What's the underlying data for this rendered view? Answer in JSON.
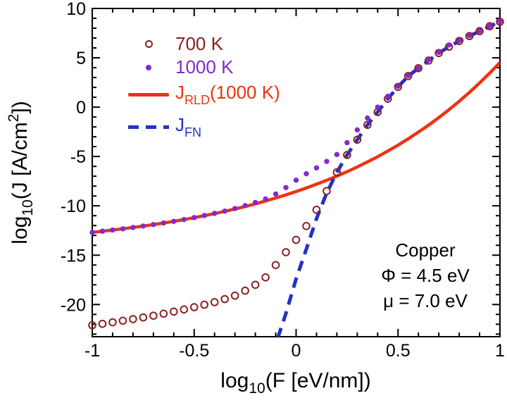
{
  "figure": {
    "background": "#ffffff",
    "text_color": "#000000"
  },
  "axes": {
    "x": {
      "title_parts": {
        "pre": "log",
        "sub": "10",
        "rest": "(F [eV/nm])"
      },
      "range": [
        -1,
        1
      ],
      "major_ticks": [
        -1,
        -0.5,
        0,
        0.5,
        1
      ],
      "tick_labels": [
        "-1",
        "-0.5",
        "0",
        "0.5",
        "1"
      ],
      "minor_step": 0.1
    },
    "y": {
      "title_parts": {
        "pre": "log",
        "sub": "10",
        "rest": "(J [A/cm",
        "sup": "2",
        "end": "])"
      },
      "range": [
        -23.26,
        10
      ],
      "major_ticks": [
        10,
        5,
        0,
        -5,
        -10,
        -15,
        -20
      ],
      "tick_labels": [
        "10",
        "5",
        "0",
        "-5",
        "-10",
        "-15",
        "-20"
      ],
      "minor_step": 1
    }
  },
  "legend": {
    "items": [
      {
        "label": "700 K",
        "marker": "open-circle",
        "color": "#8b2121"
      },
      {
        "label": "1000 K",
        "marker": "filled-dot",
        "color": "#8229d2"
      },
      {
        "parts": {
          "main": "J",
          "sub": "RLD",
          "rest": "(1000 K)"
        },
        "marker": "solid-line",
        "color": "#ee3211"
      },
      {
        "parts": {
          "main": "J",
          "sub": "FN",
          "rest": ""
        },
        "marker": "dashed-line",
        "color": "#2231c7"
      }
    ]
  },
  "annotation": {
    "lines": [
      "Copper",
      "Φ = 4.5 eV",
      "μ = 7.0 eV"
    ]
  },
  "colors": {
    "series_700K": "#8b2121",
    "series_1000K": "#8229d2",
    "rld_line": "#ee3211",
    "fn_line": "#2231c7",
    "axis": "#000000"
  },
  "chart_data": {
    "type": "scatter",
    "xlabel": "log10(F [eV/nm])",
    "ylabel": "log10(J [A/cm2])",
    "xlim": [
      -1,
      1
    ],
    "ylim": [
      -23.26,
      10
    ],
    "grid": false,
    "legend_position": "top-left-inside",
    "series": [
      {
        "name": "700 K",
        "style": "open-circle-markers",
        "color": "#8b2121",
        "points": [
          [
            -1,
            -22.1
          ],
          [
            -0.95,
            -21.95
          ],
          [
            -0.9,
            -21.8
          ],
          [
            -0.85,
            -21.64
          ],
          [
            -0.8,
            -21.48
          ],
          [
            -0.75,
            -21.31
          ],
          [
            -0.7,
            -21.13
          ],
          [
            -0.65,
            -20.93
          ],
          [
            -0.6,
            -20.72
          ],
          [
            -0.55,
            -20.5
          ],
          [
            -0.5,
            -20.27
          ],
          [
            -0.45,
            -20.02
          ],
          [
            -0.4,
            -19.76
          ],
          [
            -0.35,
            -19.45
          ],
          [
            -0.3,
            -19.1
          ],
          [
            -0.25,
            -18.6
          ],
          [
            -0.2,
            -18.0
          ],
          [
            -0.15,
            -17.25
          ],
          [
            -0.1,
            -16.0
          ],
          [
            -0.05,
            -14.7
          ],
          [
            0,
            -13.45
          ],
          [
            0.05,
            -12.05
          ],
          [
            0.1,
            -10.4
          ],
          [
            0.15,
            -8.5
          ],
          [
            0.2,
            -6.6
          ],
          [
            0.25,
            -4.85
          ],
          [
            0.3,
            -3.3
          ],
          [
            0.35,
            -1.8
          ],
          [
            0.4,
            -0.5
          ],
          [
            0.45,
            0.85
          ],
          [
            0.5,
            2.05
          ],
          [
            0.55,
            3.15
          ],
          [
            0.6,
            3.95
          ],
          [
            0.65,
            4.72
          ],
          [
            0.7,
            5.48
          ],
          [
            0.75,
            6.12
          ],
          [
            0.8,
            6.7
          ],
          [
            0.85,
            7.2
          ],
          [
            0.9,
            7.7
          ],
          [
            0.95,
            8.2
          ],
          [
            1,
            8.65
          ]
        ]
      },
      {
        "name": "1000 K",
        "style": "filled-dot-markers",
        "color": "#8229d2",
        "points": [
          [
            -1,
            -12.69
          ],
          [
            -0.95,
            -12.57
          ],
          [
            -0.9,
            -12.45
          ],
          [
            -0.85,
            -12.33
          ],
          [
            -0.8,
            -12.19
          ],
          [
            -0.75,
            -12.05
          ],
          [
            -0.7,
            -11.9
          ],
          [
            -0.65,
            -11.74
          ],
          [
            -0.6,
            -11.57
          ],
          [
            -0.55,
            -11.39
          ],
          [
            -0.5,
            -11.19
          ],
          [
            -0.45,
            -10.98
          ],
          [
            -0.4,
            -10.76
          ],
          [
            -0.35,
            -10.53
          ],
          [
            -0.3,
            -10.27
          ],
          [
            -0.25,
            -9.98
          ],
          [
            -0.2,
            -9.66
          ],
          [
            -0.15,
            -9.3
          ],
          [
            -0.1,
            -8.8
          ],
          [
            -0.05,
            -8.15
          ],
          [
            0,
            -7.4
          ],
          [
            0.05,
            -6.75
          ],
          [
            0.1,
            -6.15
          ],
          [
            0.15,
            -5.5
          ],
          [
            0.2,
            -4.8
          ],
          [
            0.25,
            -3.6
          ],
          [
            0.3,
            -2.3
          ],
          [
            0.35,
            -1.1
          ],
          [
            0.4,
            0
          ],
          [
            0.45,
            1.1
          ],
          [
            0.5,
            2.1
          ],
          [
            0.55,
            3.2
          ],
          [
            0.6,
            3.95
          ],
          [
            0.65,
            4.8
          ],
          [
            0.7,
            5.55
          ],
          [
            0.75,
            6.3
          ],
          [
            0.8,
            6.75
          ],
          [
            0.85,
            7.25
          ],
          [
            0.9,
            7.72
          ],
          [
            0.95,
            8.2
          ],
          [
            1,
            8.67
          ]
        ]
      },
      {
        "name": "J_RLD(1000 K)",
        "style": "solid-line",
        "color": "#ee3211",
        "points": [
          [
            -1,
            -12.69
          ],
          [
            -0.95,
            -12.57
          ],
          [
            -0.9,
            -12.45
          ],
          [
            -0.85,
            -12.33
          ],
          [
            -0.8,
            -12.19
          ],
          [
            -0.75,
            -12.05
          ],
          [
            -0.7,
            -11.9
          ],
          [
            -0.65,
            -11.74
          ],
          [
            -0.6,
            -11.57
          ],
          [
            -0.55,
            -11.39
          ],
          [
            -0.5,
            -11.2
          ],
          [
            -0.45,
            -11.0
          ],
          [
            -0.4,
            -10.78
          ],
          [
            -0.35,
            -10.56
          ],
          [
            -0.3,
            -10.32
          ],
          [
            -0.25,
            -10.07
          ],
          [
            -0.2,
            -9.8
          ],
          [
            -0.15,
            -9.51
          ],
          [
            -0.1,
            -9.21
          ],
          [
            -0.05,
            -8.89
          ],
          [
            0,
            -8.55
          ],
          [
            0.05,
            -8.19
          ],
          [
            0.1,
            -7.81
          ],
          [
            0.15,
            -7.41
          ],
          [
            0.2,
            -6.99
          ],
          [
            0.25,
            -6.54
          ],
          [
            0.3,
            -6.06
          ],
          [
            0.35,
            -5.55
          ],
          [
            0.4,
            -5.02
          ],
          [
            0.45,
            -4.45
          ],
          [
            0.5,
            -3.85
          ],
          [
            0.55,
            -3.21
          ],
          [
            0.6,
            -2.53
          ],
          [
            0.65,
            -1.82
          ],
          [
            0.7,
            -1.06
          ],
          [
            0.75,
            -0.26
          ],
          [
            0.8,
            0.59
          ],
          [
            0.85,
            1.49
          ],
          [
            0.9,
            2.45
          ],
          [
            0.95,
            3.46
          ],
          [
            1,
            4.53
          ]
        ]
      },
      {
        "name": "J_FN",
        "style": "dashed-line",
        "color": "#2231c7",
        "points": [
          [
            -0.09,
            -23.4
          ],
          [
            -0.05,
            -20.9
          ],
          [
            0,
            -17.4
          ],
          [
            0.05,
            -14.4
          ],
          [
            0.1,
            -11.3
          ],
          [
            0.15,
            -8.7
          ],
          [
            0.2,
            -6.6
          ],
          [
            0.25,
            -4.85
          ],
          [
            0.3,
            -3.3
          ],
          [
            0.35,
            -1.8
          ],
          [
            0.4,
            -0.5
          ],
          [
            0.45,
            0.85
          ],
          [
            0.5,
            2.05
          ],
          [
            0.55,
            3.15
          ],
          [
            0.6,
            3.95
          ],
          [
            0.65,
            4.72
          ],
          [
            0.7,
            5.48
          ],
          [
            0.75,
            6.12
          ],
          [
            0.8,
            6.7
          ],
          [
            0.85,
            7.2
          ],
          [
            0.9,
            7.7
          ],
          [
            0.95,
            8.2
          ],
          [
            1,
            8.65
          ]
        ]
      }
    ]
  }
}
